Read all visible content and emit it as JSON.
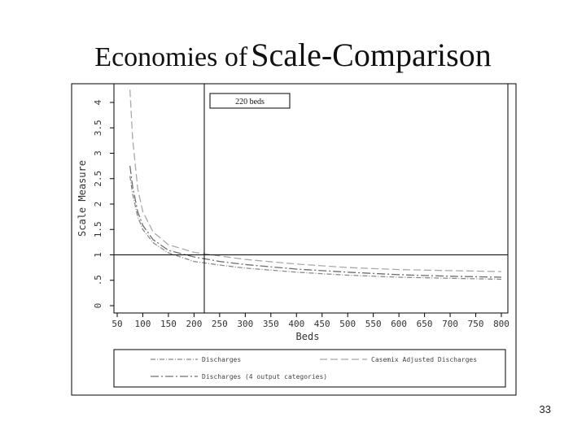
{
  "slide": {
    "title_part1": "Economies of",
    "title_part2": "Scale-Comparison",
    "page_number": "33"
  },
  "chart_data": {
    "type": "line",
    "xlabel": "Beds",
    "ylabel": "Scale Measure",
    "xlim": [
      50,
      800
    ],
    "ylim": [
      0,
      4
    ],
    "x_ticks": [
      "50",
      "100",
      "150",
      "200",
      "250",
      "300",
      "350",
      "400",
      "450",
      "500",
      "550",
      "600",
      "650",
      "700",
      "750",
      "800"
    ],
    "y_ticks": [
      "0",
      ".5",
      "1",
      "1.5",
      "2",
      "2.5",
      "3",
      "3.5",
      "4"
    ],
    "grid": false,
    "reference_lines": {
      "vertical_x": 220,
      "horizontal_y": 1
    },
    "annotation": "220 beds",
    "legend_position": "bottom",
    "series": [
      {
        "name": "Discharges",
        "style": "dash-dot",
        "color": "#8a8a8a",
        "x": [
          75,
          80,
          90,
          100,
          120,
          150,
          200,
          250,
          300,
          400,
          500,
          600,
          700,
          800
        ],
        "y": [
          2.55,
          2.2,
          1.75,
          1.5,
          1.24,
          1.04,
          0.87,
          0.8,
          0.74,
          0.66,
          0.6,
          0.56,
          0.54,
          0.52
        ]
      },
      {
        "name": "Casemix Adjusted Discharges",
        "style": "long-dash",
        "color": "#a8a8a8",
        "x": [
          75,
          80,
          90,
          100,
          120,
          150,
          200,
          250,
          300,
          400,
          500,
          600,
          700,
          800
        ],
        "y": [
          4.25,
          3.3,
          2.3,
          1.85,
          1.45,
          1.2,
          1.05,
          0.98,
          0.91,
          0.82,
          0.75,
          0.71,
          0.69,
          0.67
        ]
      },
      {
        "name": "Discharges (4 output categories)",
        "style": "dash-dot-long",
        "color": "#6e6e6e",
        "x": [
          75,
          80,
          90,
          100,
          120,
          150,
          200,
          250,
          300,
          400,
          500,
          600,
          700,
          800
        ],
        "y": [
          2.75,
          2.35,
          1.85,
          1.58,
          1.3,
          1.09,
          0.96,
          0.87,
          0.81,
          0.72,
          0.66,
          0.61,
          0.58,
          0.56
        ]
      }
    ]
  }
}
